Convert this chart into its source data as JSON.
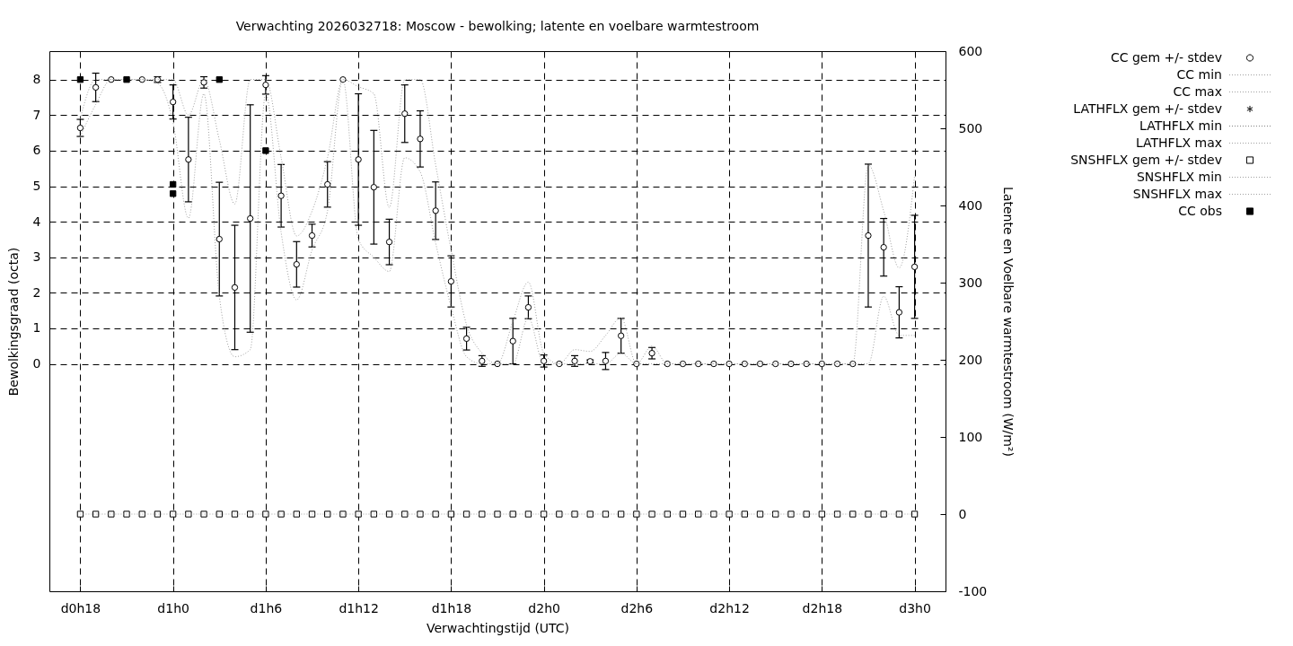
{
  "chart_data": {
    "type": "scatter",
    "title": "Verwachting 2026032718: Moscow - bewolking; latente en voelbare warmtestroom",
    "xlabel": "Verwachtingstijd (UTC)",
    "ylabel": "Bewolkingsgraad (octa)",
    "y2label": "Latente en Voelbare warmtestroom (W/m²)",
    "categories": [
      "d0h18",
      null,
      null,
      null,
      null,
      null,
      "d1h0",
      null,
      null,
      null,
      null,
      null,
      "d1h6",
      null,
      null,
      null,
      null,
      null,
      "d1h12",
      null,
      null,
      null,
      null,
      null,
      "d1h18",
      null,
      null,
      null,
      null,
      null,
      "d2h0",
      null,
      null,
      null,
      null,
      null,
      "d2h6",
      null,
      null,
      null,
      null,
      null,
      "d2h12",
      null,
      null,
      null,
      null,
      null,
      "d2h18",
      null,
      null,
      null,
      null,
      null,
      "d3h0"
    ],
    "ylim": [
      -6.4,
      8.8
    ],
    "yticks": [
      0,
      1,
      2,
      3,
      4,
      5,
      6,
      7,
      8
    ],
    "y2lim": [
      -100,
      600
    ],
    "y2ticks": [
      -100,
      0,
      100,
      200,
      300,
      400,
      500,
      600
    ],
    "grid": true,
    "legend": "top right",
    "series": [
      {
        "name": "CC gem +/- stdev",
        "marker": "circle",
        "color": "#000000",
        "values": [
          6.64,
          7.78,
          8,
          null,
          8,
          8,
          7.37,
          5.75,
          7.92,
          3.51,
          2.15,
          4.09,
          7.85,
          4.73,
          2.8,
          3.61,
          5.05,
          8,
          5.75,
          4.97,
          3.43,
          7.04,
          6.33,
          4.31,
          2.32,
          0.71,
          0.08,
          0,
          0.64,
          1.59,
          0.08,
          0,
          0.08,
          0.07,
          0.08,
          0.79,
          0,
          0.3,
          0,
          0,
          0,
          0,
          0,
          0,
          0,
          0,
          0,
          0,
          0,
          0,
          0,
          3.61,
          3.28,
          1.45,
          2.73
        ],
        "errors": [
          0.24,
          0.4,
          null,
          null,
          null,
          0.08,
          0.48,
          1.19,
          0.16,
          1.6,
          1.75,
          3.2,
          0.26,
          0.88,
          0.64,
          0.32,
          0.64,
          null,
          1.85,
          1.6,
          0.64,
          0.81,
          0.79,
          0.81,
          0.72,
          0.32,
          0.15,
          null,
          0.64,
          0.32,
          0.17,
          null,
          0.15,
          0.04,
          0.24,
          0.49,
          null,
          0.16,
          null,
          null,
          null,
          null,
          null,
          null,
          null,
          null,
          null,
          null,
          null,
          null,
          null,
          2.01,
          0.81,
          0.72,
          1.45
        ]
      },
      {
        "name": "CC min",
        "type": "line",
        "line_style": "dotted",
        "color": "#a0a0a0",
        "values": [
          6.4,
          7.3,
          8,
          8,
          8,
          7.9,
          6.8,
          4.1,
          7.6,
          1.9,
          0.2,
          0.4,
          7.6,
          3.7,
          1.8,
          3.2,
          4.3,
          8,
          3.5,
          3.0,
          2.6,
          5.8,
          5.4,
          3.4,
          1.6,
          0.2,
          0,
          0,
          0,
          1.3,
          0,
          0,
          0,
          0,
          0,
          0.3,
          0,
          0,
          0,
          0,
          0,
          0,
          0,
          0,
          0,
          0,
          0,
          0,
          0,
          0,
          0,
          0,
          1.9,
          0.8,
          0.8
        ]
      },
      {
        "name": "CC max",
        "type": "line",
        "line_style": "dotted",
        "color": "#a0a0a0",
        "values": [
          6.9,
          8,
          8,
          8,
          8,
          8,
          8,
          7.0,
          8,
          6.3,
          4.5,
          8,
          8,
          5.8,
          3.6,
          4.3,
          5.8,
          8,
          7.8,
          7.6,
          4.4,
          8,
          8,
          5.6,
          3.2,
          1.1,
          0.3,
          0,
          1.2,
          2.3,
          0.3,
          0,
          0.4,
          0.35,
          0.8,
          1.3,
          0,
          0.5,
          0,
          0,
          0,
          0,
          0,
          0,
          0,
          0,
          0,
          0,
          0,
          0,
          0,
          5.6,
          4.3,
          2.7,
          5.3
        ]
      },
      {
        "name": "LATHFLX gem +/- stdev",
        "marker": "star",
        "axis": "y2",
        "color": "#000000",
        "values": [
          null,
          null,
          null,
          null,
          null,
          null,
          null,
          null,
          null,
          null,
          null,
          null,
          null,
          null,
          null,
          null,
          null,
          null,
          null,
          null,
          null,
          null,
          null,
          null,
          null,
          null,
          null,
          null,
          null,
          null,
          null,
          null,
          null,
          null,
          null,
          null,
          null,
          null,
          null,
          null,
          null,
          null,
          null,
          null,
          null,
          null,
          null,
          null,
          null,
          null,
          null,
          null,
          null,
          null,
          null
        ]
      },
      {
        "name": "LATHFLX min",
        "type": "line",
        "line_style": "dotted",
        "axis": "y2",
        "color": "#808080",
        "values": [
          null,
          null,
          null,
          null,
          null,
          null,
          null,
          null,
          null,
          null,
          null,
          null,
          null,
          null,
          null,
          null,
          null,
          null,
          null,
          null,
          null,
          null,
          null,
          null,
          null,
          null,
          null,
          null,
          null,
          null,
          null,
          null,
          null,
          null,
          null,
          null,
          null,
          null,
          null,
          null,
          null,
          null,
          null,
          null,
          null,
          null,
          null,
          null,
          null,
          null,
          null,
          null,
          null,
          null,
          null
        ]
      },
      {
        "name": "LATHFLX max",
        "type": "line",
        "line_style": "dotted",
        "axis": "y2",
        "color": "#a0a0a0",
        "values": [
          null,
          null,
          null,
          null,
          null,
          null,
          null,
          null,
          null,
          null,
          null,
          null,
          null,
          null,
          null,
          null,
          null,
          null,
          null,
          null,
          null,
          null,
          null,
          null,
          null,
          null,
          null,
          null,
          null,
          null,
          null,
          null,
          null,
          null,
          null,
          null,
          null,
          null,
          null,
          null,
          null,
          null,
          null,
          null,
          null,
          null,
          null,
          null,
          null,
          null,
          null,
          null,
          null,
          null,
          null
        ]
      },
      {
        "name": "SNSHFLX gem +/- stdev",
        "marker": "square",
        "axis": "y2",
        "color": "#000000",
        "values": [
          0,
          0,
          0,
          0,
          0,
          0,
          0,
          0,
          0,
          0,
          0,
          0,
          0,
          0,
          0,
          0,
          0,
          0,
          0,
          0,
          0,
          0,
          0,
          0,
          0,
          0,
          0,
          0,
          0,
          0,
          0,
          0,
          0,
          0,
          0,
          0,
          0,
          0,
          0,
          0,
          0,
          0,
          0,
          0,
          0,
          0,
          0,
          0,
          0,
          0,
          0,
          0,
          0,
          0,
          0
        ],
        "errors": [
          0,
          0,
          0,
          0,
          0,
          0,
          0,
          0,
          0,
          0,
          0,
          0,
          0,
          0,
          0,
          0,
          0,
          0,
          0,
          0,
          0,
          0,
          0,
          0,
          0,
          0,
          0,
          0,
          0,
          0,
          0,
          0,
          0,
          0,
          0,
          0,
          0,
          0,
          0,
          0,
          0,
          0,
          0,
          0,
          0,
          0,
          0,
          0,
          0,
          0,
          0,
          0,
          0,
          0,
          0
        ]
      },
      {
        "name": "SNSHFLX min",
        "type": "line",
        "line_style": "dotted",
        "axis": "y2",
        "color": "#a0a0a0",
        "values": [
          null,
          null,
          null,
          null,
          null,
          null,
          null,
          null,
          null,
          null,
          null,
          null,
          null,
          null,
          null,
          null,
          null,
          null,
          null,
          null,
          null,
          null,
          null,
          null,
          null,
          null,
          null,
          null,
          null,
          null,
          null,
          null,
          null,
          null,
          null,
          null,
          null,
          null,
          null,
          null,
          null,
          null,
          null,
          null,
          null,
          null,
          null,
          null,
          null,
          null,
          null,
          null,
          null,
          null,
          null
        ]
      },
      {
        "name": "SNSHFLX max",
        "type": "line",
        "line_style": "dotted",
        "axis": "y2",
        "color": "#a0a0a0",
        "values": [
          0,
          0,
          0,
          0,
          0,
          0,
          0,
          0,
          0,
          0,
          0,
          0,
          0,
          0,
          0,
          0,
          0,
          0,
          0,
          0,
          0,
          0,
          0,
          0,
          0,
          0,
          0,
          0,
          0,
          0,
          0,
          0,
          0,
          0,
          0,
          0,
          0,
          0,
          0,
          0,
          0,
          0,
          0,
          0,
          0,
          0,
          0,
          0,
          0,
          0,
          0,
          0,
          0,
          0,
          0
        ]
      },
      {
        "name": "CC obs",
        "marker": "square",
        "color": "#000000",
        "values": [
          8,
          null,
          null,
          8,
          null,
          null,
          5.05,
          null,
          null,
          8,
          null,
          null,
          6,
          null,
          null,
          null,
          null,
          null,
          null,
          null,
          null,
          null,
          null,
          null,
          null,
          null,
          null,
          null,
          null,
          null,
          null,
          null,
          null,
          null,
          null,
          null,
          null,
          null,
          null,
          null,
          null,
          null,
          null,
          null,
          null,
          null,
          null,
          null,
          null,
          null,
          null,
          null,
          null,
          null,
          null
        ]
      },
      {
        "marker": "square",
        "color": "#000000",
        "values": [
          null,
          null,
          null,
          null,
          null,
          null,
          4.79,
          null,
          null,
          null,
          null,
          null,
          null,
          null,
          null,
          null,
          null,
          null,
          null,
          null,
          null,
          null,
          null,
          null,
          null,
          null,
          null,
          null,
          null,
          null,
          null,
          null,
          null,
          null,
          null,
          null,
          null,
          null,
          null,
          null,
          null,
          null,
          null,
          null,
          null,
          null,
          null,
          null,
          null,
          null,
          null,
          null,
          null,
          null,
          null
        ]
      }
    ]
  }
}
